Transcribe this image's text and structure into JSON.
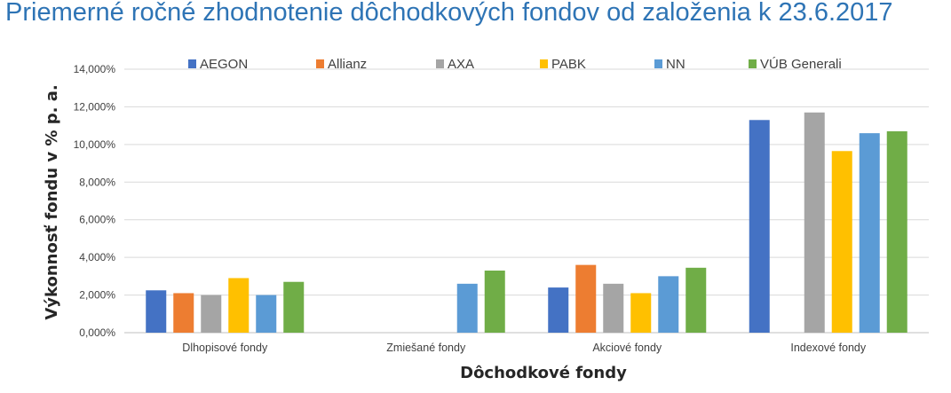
{
  "chart_data": {
    "type": "bar",
    "title": "Priemerné ročné zhodnotenie dôchodkových fondov od založenia k 23.6.2017",
    "xlabel": "Dôchodkové fondy",
    "ylabel": "Výkonnosť fondu v % p. a.",
    "ylim": [
      0,
      14
    ],
    "yticks": [
      0,
      2,
      4,
      6,
      8,
      10,
      12,
      14
    ],
    "ytick_labels": [
      "0,000%",
      "2,000%",
      "4,000%",
      "6,000%",
      "8,000%",
      "10,000%",
      "12,000%",
      "14,000%"
    ],
    "grid": true,
    "legend_position": "top",
    "categories": [
      "Dlhopisové fondy",
      "Zmiešané fondy",
      "Akciové fondy",
      "Indexové fondy"
    ],
    "series": [
      {
        "name": "AEGON",
        "color": "#4472c4",
        "values": [
          2.25,
          null,
          2.4,
          11.3
        ]
      },
      {
        "name": "Allianz",
        "color": "#ed7d31",
        "values": [
          2.1,
          null,
          3.6,
          null
        ]
      },
      {
        "name": "AXA",
        "color": "#a5a5a5",
        "values": [
          2.0,
          null,
          2.6,
          11.7
        ]
      },
      {
        "name": "PABK",
        "color": "#ffc000",
        "values": [
          2.9,
          null,
          2.1,
          9.65
        ]
      },
      {
        "name": "NN",
        "color": "#5b9bd5",
        "values": [
          2.0,
          2.6,
          3.0,
          10.6
        ]
      },
      {
        "name": "VÚB Generali",
        "color": "#70ad47",
        "values": [
          2.7,
          3.3,
          3.45,
          10.7
        ]
      }
    ]
  }
}
